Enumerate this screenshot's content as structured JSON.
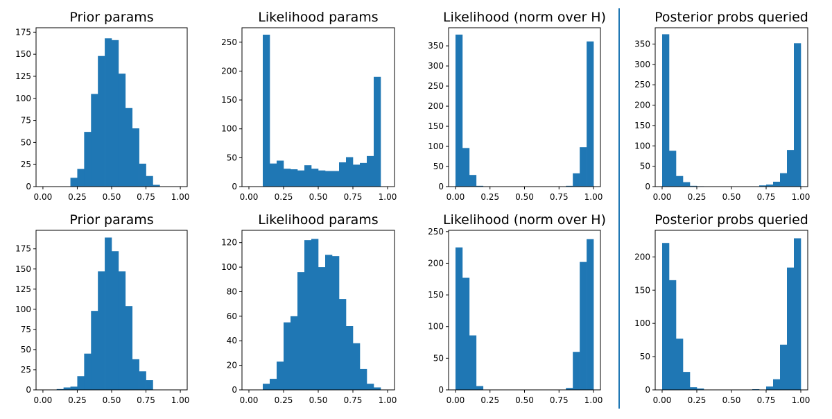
{
  "colors": {
    "bar": "#1f77b4",
    "divider": "#1f77b4"
  },
  "chart_data": [
    {
      "type": "bar",
      "title": "Prior params",
      "bins": 20,
      "xlim": [
        -0.05,
        1.05
      ],
      "ylim": [
        0,
        180
      ],
      "xticks": [
        0.0,
        0.25,
        0.5,
        0.75,
        1.0
      ],
      "xtick_labels": [
        "0.00",
        "0.25",
        "0.50",
        "0.75",
        "1.00"
      ],
      "yticks": [
        0,
        25,
        50,
        75,
        100,
        125,
        150,
        175
      ],
      "ytick_labels": [
        "0",
        "25",
        "50",
        "75",
        "100",
        "125",
        "150",
        "175"
      ],
      "values": [
        0,
        0,
        0,
        0,
        10,
        20,
        62,
        105,
        148,
        168,
        166,
        128,
        89,
        66,
        26,
        12,
        2,
        0,
        0,
        0
      ]
    },
    {
      "type": "bar",
      "title": "Likelihood params",
      "bins": 20,
      "xlim": [
        -0.05,
        1.05
      ],
      "ylim": [
        0,
        275
      ],
      "xticks": [
        0.0,
        0.25,
        0.5,
        0.75,
        1.0
      ],
      "xtick_labels": [
        "0.00",
        "0.25",
        "0.50",
        "0.75",
        "1.00"
      ],
      "yticks": [
        0,
        50,
        100,
        150,
        200,
        250
      ],
      "ytick_labels": [
        "0",
        "50",
        "100",
        "150",
        "200",
        "250"
      ],
      "values": [
        0,
        0,
        263,
        40,
        45,
        31,
        30,
        28,
        37,
        31,
        28,
        27,
        27,
        42,
        51,
        38,
        41,
        53,
        190,
        0
      ]
    },
    {
      "type": "bar",
      "title": "Likelihood (norm over H)",
      "bins": 20,
      "xlim": [
        -0.05,
        1.05
      ],
      "ylim": [
        0,
        395
      ],
      "xticks": [
        0.0,
        0.25,
        0.5,
        0.75,
        1.0
      ],
      "xtick_labels": [
        "0.00",
        "0.25",
        "0.50",
        "0.75",
        "1.00"
      ],
      "yticks": [
        0,
        50,
        100,
        150,
        200,
        250,
        300,
        350
      ],
      "ytick_labels": [
        "0",
        "50",
        "100",
        "150",
        "200",
        "250",
        "300",
        "350"
      ],
      "values": [
        378,
        96,
        29,
        2,
        0,
        0,
        0,
        0,
        0,
        0,
        0,
        0,
        0,
        0,
        0,
        0,
        2,
        33,
        98,
        361
      ]
    },
    {
      "type": "bar",
      "title": "Posterior probs queried",
      "bins": 20,
      "xlim": [
        -0.05,
        1.05
      ],
      "ylim": [
        0,
        390
      ],
      "xticks": [
        0.0,
        0.25,
        0.5,
        0.75,
        1.0
      ],
      "xtick_labels": [
        "0.00",
        "0.25",
        "0.50",
        "0.75",
        "1.00"
      ],
      "yticks": [
        0,
        50,
        100,
        150,
        200,
        250,
        300,
        350
      ],
      "ytick_labels": [
        "0",
        "50",
        "100",
        "150",
        "200",
        "250",
        "300",
        "350"
      ],
      "values": [
        374,
        88,
        26,
        11,
        2,
        1,
        0,
        0,
        0,
        0,
        0,
        0,
        0,
        0,
        3,
        5,
        12,
        33,
        90,
        352
      ]
    },
    {
      "type": "bar",
      "title": "Prior params",
      "bins": 20,
      "xlim": [
        -0.05,
        1.05
      ],
      "ylim": [
        0,
        198
      ],
      "xticks": [
        0.0,
        0.25,
        0.5,
        0.75,
        1.0
      ],
      "xtick_labels": [
        "0.00",
        "0.25",
        "0.50",
        "0.75",
        "1.00"
      ],
      "yticks": [
        0,
        25,
        50,
        75,
        100,
        125,
        150,
        175
      ],
      "ytick_labels": [
        "0",
        "25",
        "50",
        "75",
        "100",
        "125",
        "150",
        "175"
      ],
      "values": [
        0,
        0,
        1,
        3,
        4,
        17,
        45,
        98,
        147,
        189,
        172,
        147,
        104,
        38,
        23,
        12,
        0,
        0,
        0,
        0
      ]
    },
    {
      "type": "bar",
      "title": "Likelihood params",
      "bins": 20,
      "xlim": [
        -0.05,
        1.05
      ],
      "ylim": [
        0,
        130
      ],
      "xticks": [
        0.0,
        0.25,
        0.5,
        0.75,
        1.0
      ],
      "xtick_labels": [
        "0.00",
        "0.25",
        "0.50",
        "0.75",
        "1.00"
      ],
      "yticks": [
        0,
        20,
        40,
        60,
        80,
        100,
        120
      ],
      "ytick_labels": [
        "0",
        "20",
        "40",
        "60",
        "80",
        "100",
        "120"
      ],
      "values": [
        0,
        0,
        5,
        9,
        23,
        55,
        60,
        96,
        122,
        123,
        100,
        110,
        109,
        74,
        52,
        38,
        17,
        5,
        2,
        0
      ]
    },
    {
      "type": "bar",
      "title": "Likelihood (norm over H)",
      "bins": 20,
      "xlim": [
        -0.05,
        1.05
      ],
      "ylim": [
        0,
        252
      ],
      "xticks": [
        0.0,
        0.25,
        0.5,
        0.75,
        1.0
      ],
      "xtick_labels": [
        "0.00",
        "0.25",
        "0.50",
        "0.75",
        "1.00"
      ],
      "yticks": [
        0,
        50,
        100,
        150,
        200,
        250
      ],
      "ytick_labels": [
        "0",
        "50",
        "100",
        "150",
        "200",
        "250"
      ],
      "values": [
        225,
        177,
        86,
        6,
        0,
        0,
        0,
        0,
        0,
        0,
        0,
        0,
        0,
        0,
        0,
        0,
        3,
        60,
        202,
        238
      ]
    },
    {
      "type": "bar",
      "title": "Posterior probs queried",
      "bins": 20,
      "xlim": [
        -0.05,
        1.05
      ],
      "ylim": [
        0,
        240
      ],
      "xticks": [
        0.0,
        0.25,
        0.5,
        0.75,
        1.0
      ],
      "xtick_labels": [
        "0.00",
        "0.25",
        "0.50",
        "0.75",
        "1.00"
      ],
      "yticks": [
        0,
        50,
        100,
        150,
        200
      ],
      "ytick_labels": [
        "0",
        "50",
        "100",
        "150",
        "200"
      ],
      "values": [
        221,
        165,
        77,
        27,
        4,
        2,
        0,
        0,
        0,
        0,
        0,
        0,
        0,
        1,
        0,
        5,
        16,
        68,
        184,
        228
      ]
    }
  ]
}
